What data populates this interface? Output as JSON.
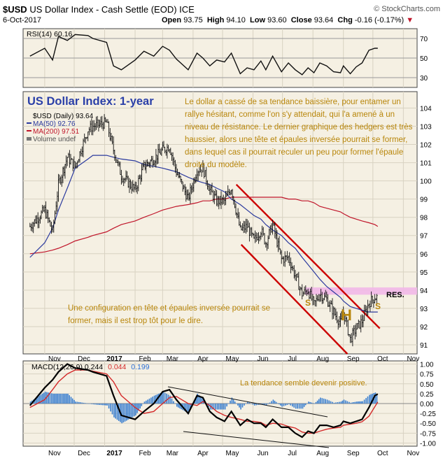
{
  "header": {
    "symbol": "$USD",
    "title": "US Dollar Index - Cash Settle (EOD)",
    "exchange": "ICE",
    "date": "6-Oct-2017",
    "open_label": "Open",
    "open": "93.75",
    "high_label": "High",
    "high": "94.10",
    "low_label": "Low",
    "low": "93.60",
    "close_label": "Close",
    "close": "93.64",
    "chg_label": "Chg",
    "chg": "-0.16 (-0.17%)",
    "brand": "© StockCharts.com"
  },
  "rsi_panel": {
    "label": "RSI(14) 60.16",
    "ticks": [
      "70",
      "50",
      "30"
    ],
    "tick_values": [
      70,
      50,
      30
    ],
    "ylim": [
      20,
      80
    ]
  },
  "price_panel": {
    "big_title": "US Dollar Index: 1-year",
    "legend_symbol": "$USD (Daily) 93.64",
    "legend_ma50": "MA(50) 92.76",
    "legend_ma200": "MA(200) 97.51",
    "legend_volume": "Volume undef",
    "y_ticks": [
      "104",
      "103",
      "102",
      "101",
      "100",
      "99",
      "98",
      "97",
      "96",
      "95",
      "94",
      "93",
      "92",
      "91"
    ],
    "ylim": [
      90.5,
      104.9
    ],
    "res_label": "RES.",
    "res_band": [
      93.75,
      94.15
    ],
    "pattern_labels": {
      "left_shoulder": "S",
      "head": "H",
      "right_shoulder": "S"
    },
    "note_fr": "Le dollar a cassé de sa tendance baissière, pour entamer un rallye hésitant, comme l'on s'y attendait, qui l'a amené à un niveau de résistance. Le dernier graphique des hedgers est très haussier, alors une tête et épaules inversée pourrait se former, dans lequel cas il pourrait reculer un peu pour former l'épaule droite du modèle.",
    "note_pattern": "Une configuration en tête et épaules inversée pourrait se former, mais il est trop tôt pour le dire."
  },
  "macd_panel": {
    "label": "MACD(12,26,9)",
    "macd": "0.244",
    "signal": "0.044",
    "hist": "0.199",
    "note": "La tendance semble devenir positive.",
    "y_ticks": [
      "1.00",
      "0.75",
      "0.50",
      "0.25",
      "0.00",
      "-0.25",
      "-0.50",
      "-0.75",
      "-1.00"
    ],
    "ylim": [
      -1.08,
      1.08
    ]
  },
  "x_axis": [
    "Nov",
    "Dec",
    "2017",
    "Feb",
    "Mar",
    "Apr",
    "May",
    "Jun",
    "Jul",
    "Aug",
    "Sep",
    "Oct",
    "Nov"
  ],
  "colors": {
    "panel_bg": "#f5f0e3",
    "ma50": "#2b3a9e",
    "ma200": "#c0152a",
    "channel": "#cc0000",
    "res_band": "#f2b8e8",
    "annotation": "#b8860b",
    "title_blue": "#2a3fa8"
  },
  "chart_data": {
    "type": "line",
    "title": "US Dollar Index: 1-year",
    "x": [
      "2016-10-17",
      "2016-11-01",
      "2016-11-09",
      "2016-11-15",
      "2016-11-24",
      "2016-12-02",
      "2016-12-15",
      "2016-12-20",
      "2017-01-03",
      "2017-01-10",
      "2017-01-18",
      "2017-02-01",
      "2017-02-10",
      "2017-02-20",
      "2017-03-01",
      "2017-03-08",
      "2017-03-15",
      "2017-03-27",
      "2017-04-05",
      "2017-04-11",
      "2017-04-18",
      "2017-04-25",
      "2017-05-03",
      "2017-05-10",
      "2017-05-19",
      "2017-05-26",
      "2017-06-02",
      "2017-06-09",
      "2017-06-14",
      "2017-06-21",
      "2017-06-30",
      "2017-07-07",
      "2017-07-14",
      "2017-07-21",
      "2017-07-27",
      "2017-08-02",
      "2017-08-08",
      "2017-08-15",
      "2017-08-22",
      "2017-08-29",
      "2017-09-01",
      "2017-09-08",
      "2017-09-14",
      "2017-09-20",
      "2017-09-27",
      "2017-10-03",
      "2017-10-06"
    ],
    "series": [
      {
        "name": "$USD (Daily)",
        "values": [
          97.5,
          98.4,
          97.2,
          99.8,
          101.3,
          100.8,
          102.8,
          103.0,
          103.2,
          101.7,
          100.3,
          99.5,
          100.8,
          101.2,
          101.7,
          101.9,
          100.5,
          99.0,
          100.6,
          100.7,
          99.5,
          98.9,
          98.9,
          99.6,
          97.3,
          97.5,
          96.7,
          97.3,
          96.6,
          97.6,
          95.7,
          95.8,
          94.8,
          93.8,
          94.0,
          93.2,
          93.8,
          93.5,
          92.8,
          92.2,
          92.8,
          91.3,
          91.9,
          92.3,
          93.3,
          93.6,
          93.6
        ]
      },
      {
        "name": "MA(50)",
        "values": [
          95.8,
          96.6,
          97.4,
          98.4,
          99.6,
          100.7,
          101.2,
          101.4,
          101.4,
          101.3,
          101.2,
          101.1,
          100.9,
          100.8,
          100.7,
          100.6,
          100.5,
          100.2,
          100.0,
          99.9,
          99.8,
          99.6,
          99.4,
          99.0,
          98.7,
          98.4,
          98.1,
          97.9,
          97.6,
          97.3,
          97.0,
          96.6,
          96.3,
          95.8,
          95.4,
          95.0,
          94.6,
          94.2,
          93.9,
          93.6,
          93.4,
          93.1,
          93.0,
          92.9,
          92.8,
          92.8,
          92.8
        ]
      },
      {
        "name": "MA(200)",
        "values": [
          96.0,
          96.1,
          96.2,
          96.3,
          96.5,
          96.7,
          96.9,
          97.0,
          97.2,
          97.4,
          97.6,
          97.8,
          98.0,
          98.2,
          98.4,
          98.5,
          98.6,
          98.7,
          98.8,
          98.9,
          98.9,
          99.0,
          99.0,
          99.1,
          99.1,
          99.1,
          99.1,
          99.1,
          99.1,
          99.1,
          99.1,
          99.0,
          99.0,
          98.9,
          98.9,
          98.8,
          98.6,
          98.5,
          98.4,
          98.3,
          98.2,
          98.0,
          97.9,
          97.8,
          97.7,
          97.6,
          97.5
        ]
      }
    ],
    "rsi": [
      52,
      60,
      48,
      72,
      68,
      74,
      73,
      70,
      66,
      42,
      38,
      48,
      57,
      52,
      62,
      58,
      49,
      38,
      55,
      50,
      42,
      48,
      46,
      55,
      34,
      40,
      38,
      47,
      38,
      52,
      36,
      45,
      38,
      33,
      40,
      35,
      45,
      42,
      36,
      35,
      42,
      34,
      41,
      45,
      58,
      60,
      60
    ],
    "macd": [
      -0.05,
      0.4,
      0.6,
      0.8,
      1.0,
      0.9,
      0.85,
      0.8,
      0.7,
      0.2,
      -0.3,
      -0.4,
      -0.2,
      0.0,
      0.3,
      0.35,
      0.1,
      -0.25,
      0.2,
      0.15,
      -0.2,
      -0.35,
      -0.45,
      -0.2,
      -0.55,
      -0.4,
      -0.5,
      -0.5,
      -0.6,
      -0.4,
      -0.6,
      -0.6,
      -0.75,
      -0.85,
      -0.7,
      -0.75,
      -0.55,
      -0.55,
      -0.6,
      -0.55,
      -0.45,
      -0.5,
      -0.45,
      -0.4,
      -0.1,
      0.2,
      0.24
    ],
    "signal": [
      -0.1,
      0.1,
      0.35,
      0.55,
      0.75,
      0.85,
      0.85,
      0.82,
      0.75,
      0.55,
      0.2,
      -0.1,
      -0.25,
      -0.2,
      0.0,
      0.15,
      0.18,
      0.0,
      -0.05,
      0.05,
      -0.05,
      -0.2,
      -0.3,
      -0.35,
      -0.4,
      -0.45,
      -0.45,
      -0.48,
      -0.55,
      -0.5,
      -0.52,
      -0.58,
      -0.62,
      -0.72,
      -0.75,
      -0.75,
      -0.7,
      -0.65,
      -0.62,
      -0.6,
      -0.55,
      -0.52,
      -0.5,
      -0.46,
      -0.32,
      -0.08,
      0.04
    ],
    "ylim": [
      90.5,
      104.9
    ]
  }
}
